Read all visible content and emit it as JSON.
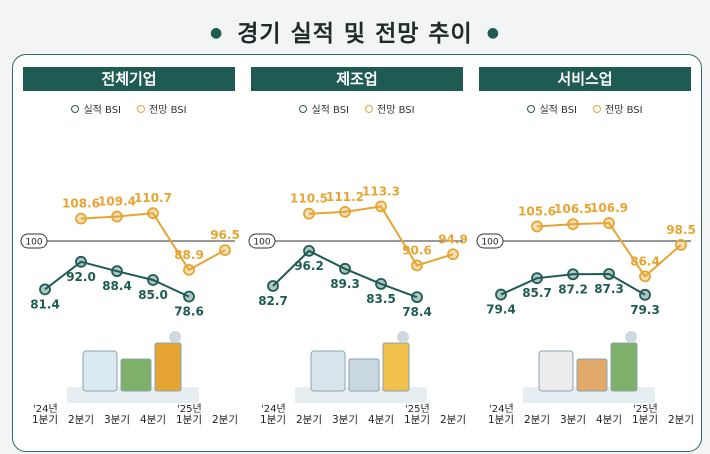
{
  "page_title": "경기 실적 및 전망 추이",
  "colors": {
    "actual": "#1e5b53",
    "outlook": "#e6a532",
    "baseline": "#333333"
  },
  "legend": {
    "actual": "실적 BSI",
    "outlook": "전망 BSI"
  },
  "baseline_label": "100",
  "year_labels": [
    "'24년",
    "'25년"
  ],
  "chart_data": [
    {
      "type": "line",
      "title": "전체기업",
      "categories": [
        "1분기",
        "2분기",
        "3분기",
        "4분기",
        "1분기",
        "2분기"
      ],
      "series": [
        {
          "name": "실적 BSI",
          "values": [
            81.4,
            92.0,
            88.4,
            85.0,
            78.6,
            null
          ]
        },
        {
          "name": "전망 BSI",
          "values": [
            null,
            108.6,
            109.4,
            110.7,
            88.9,
            96.5
          ]
        }
      ],
      "value_labels": {
        "actual": [
          "81.4",
          "92.0",
          "88.4",
          "85.0",
          "78.6"
        ],
        "outlook": [
          "108.6",
          "109.4",
          "110.7",
          "88.9",
          "96.5"
        ]
      },
      "baseline": 100
    },
    {
      "type": "line",
      "title": "제조업",
      "categories": [
        "1분기",
        "2분기",
        "3분기",
        "4분기",
        "1분기",
        "2분기"
      ],
      "series": [
        {
          "name": "실적 BSI",
          "values": [
            82.7,
            96.2,
            89.3,
            83.5,
            78.4,
            null
          ]
        },
        {
          "name": "전망 BSI",
          "values": [
            null,
            110.5,
            111.2,
            113.3,
            90.6,
            94.9
          ]
        }
      ],
      "value_labels": {
        "actual": [
          "82.7",
          "96.2",
          "89.3",
          "83.5",
          "78.4"
        ],
        "outlook": [
          "110.5",
          "111.2",
          "113.3",
          "90.6",
          "94.9"
        ]
      },
      "baseline": 100
    },
    {
      "type": "line",
      "title": "서비스업",
      "categories": [
        "1분기",
        "2분기",
        "3분기",
        "4분기",
        "1분기",
        "2분기"
      ],
      "series": [
        {
          "name": "실적 BSI",
          "values": [
            79.4,
            85.7,
            87.2,
            87.3,
            79.3,
            null
          ]
        },
        {
          "name": "전망 BSI",
          "values": [
            null,
            105.6,
            106.5,
            106.9,
            86.4,
            98.5
          ]
        }
      ],
      "value_labels": {
        "actual": [
          "79.4",
          "85.7",
          "87.2",
          "87.3",
          "79.3"
        ],
        "outlook": [
          "105.6",
          "106.5",
          "106.9",
          "86.4",
          "98.5"
        ]
      },
      "baseline": 100
    }
  ]
}
